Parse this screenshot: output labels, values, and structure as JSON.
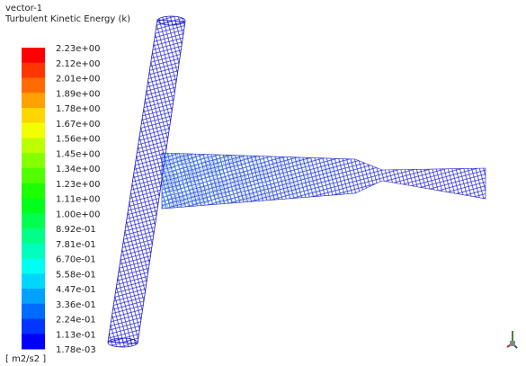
{
  "header": {
    "title": "vector-1",
    "subtitle": "Turbulent Kinetic Energy (k)"
  },
  "legend": {
    "labels": [
      "2.23e+00",
      "2.12e+00",
      "2.01e+00",
      "1.89e+00",
      "1.78e+00",
      "1.67e+00",
      "1.56e+00",
      "1.45e+00",
      "1.34e+00",
      "1.23e+00",
      "1.11e+00",
      "1.00e+00",
      "8.92e-01",
      "7.81e-01",
      "6.70e-01",
      "5.58e-01",
      "4.47e-01",
      "3.36e-01",
      "2.24e-01",
      "1.13e-01",
      "1.78e-03"
    ],
    "unit": "[ m2/s2 ]"
  }
}
